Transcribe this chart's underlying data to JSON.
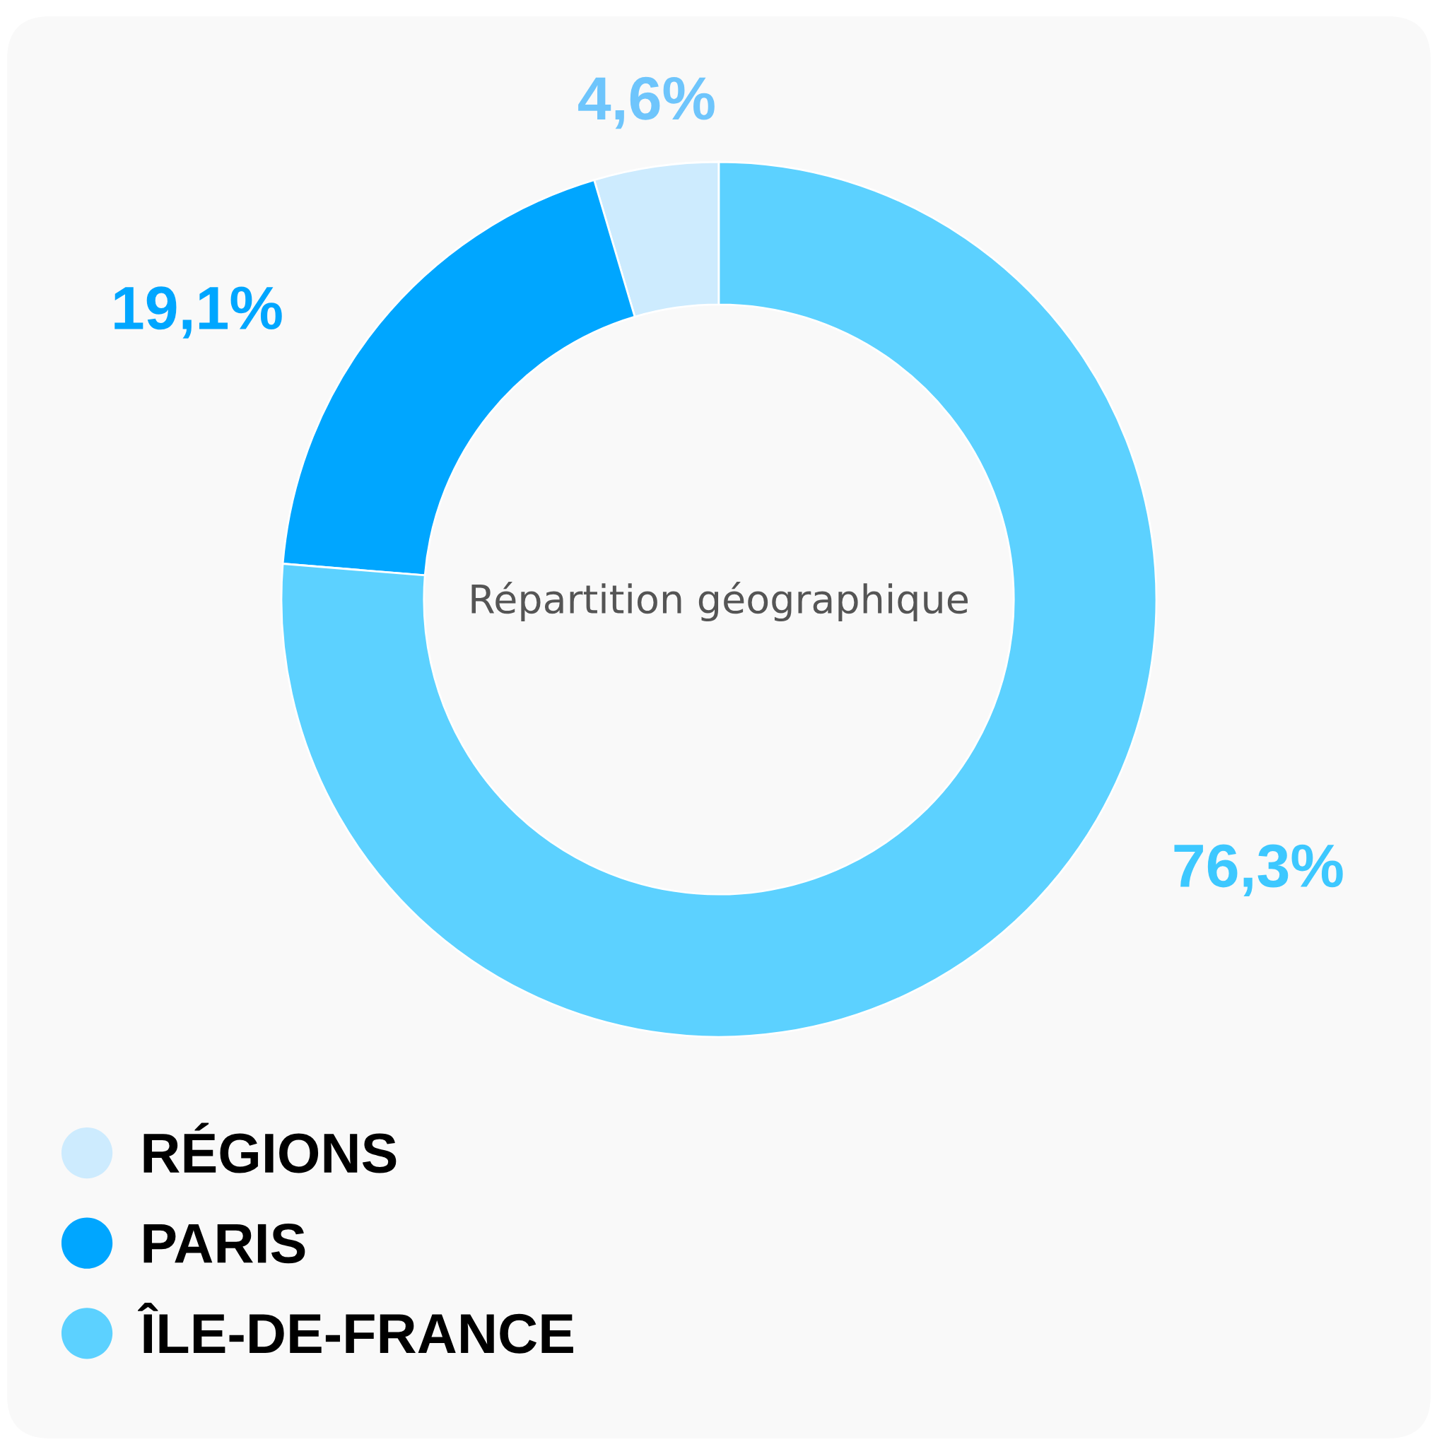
{
  "chart_data": {
    "type": "donut",
    "title": "Répartition géographique",
    "categories": [
      "RÉGIONS",
      "PARIS",
      "ÎLE-DE-FRANCE"
    ],
    "values": [
      4.6,
      19.1,
      76.3
    ],
    "colors": [
      "#cdebfe",
      "#00a6ff",
      "#5cd1ff"
    ],
    "value_labels": [
      "4,6%",
      "19,1%",
      "76,3%"
    ],
    "legend": "bottom left"
  }
}
